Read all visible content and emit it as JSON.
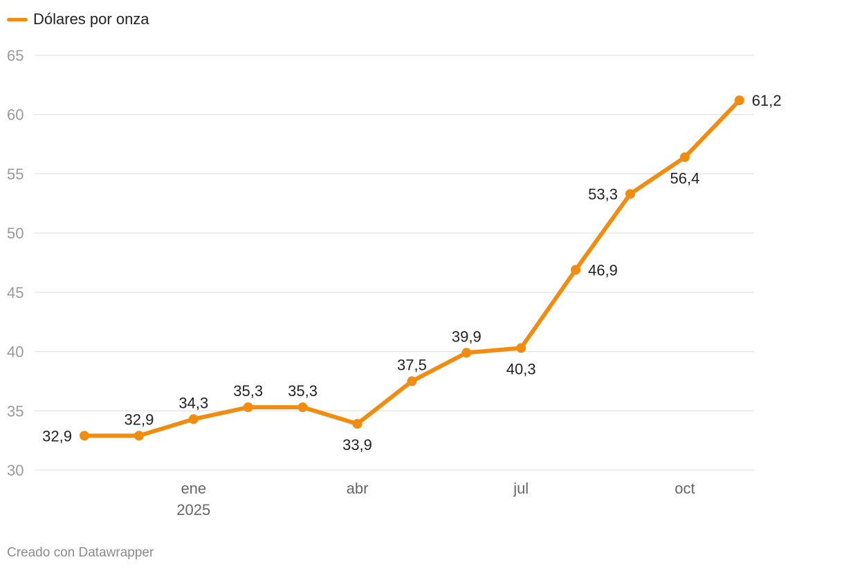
{
  "chart_data": {
    "type": "line",
    "title": "",
    "xlabel": "",
    "ylabel": "",
    "legend": {
      "position": "top-left",
      "entries": [
        "Dólares por onza"
      ]
    },
    "series": [
      {
        "name": "Dólares por onza",
        "color": "#f28c0f",
        "x": [
          "2024-11",
          "2024-12",
          "2025-01",
          "2025-02",
          "2025-03",
          "2025-04",
          "2025-05",
          "2025-06",
          "2025-07",
          "2025-08",
          "2025-09",
          "2025-10",
          "2025-11"
        ],
        "values": [
          32.9,
          32.9,
          34.3,
          35.3,
          35.3,
          33.9,
          37.5,
          39.9,
          40.3,
          46.9,
          53.3,
          56.4,
          61.2
        ],
        "labels": [
          "32,9",
          "32,9",
          "34,3",
          "35,3",
          "35,3",
          "33,9",
          "37,5",
          "39,9",
          "40,3",
          "46,9",
          "53,3",
          "56,4",
          "61,2"
        ]
      }
    ],
    "ylim": [
      30,
      65
    ],
    "yticks": [
      30,
      35,
      40,
      45,
      50,
      55,
      60,
      65
    ],
    "xticks": [
      {
        "month": "2025-01",
        "label": "ene",
        "sublabel": "2025"
      },
      {
        "month": "2025-04",
        "label": "abr",
        "sublabel": ""
      },
      {
        "month": "2025-07",
        "label": "jul",
        "sublabel": ""
      },
      {
        "month": "2025-10",
        "label": "oct",
        "sublabel": ""
      }
    ],
    "grid": true
  },
  "footer": {
    "credit": "Creado con Datawrapper"
  },
  "colors": {
    "line": "#f28c0f",
    "grid": "#dddddd",
    "axis_text": "#9a9a9a",
    "label_text": "#222222"
  }
}
